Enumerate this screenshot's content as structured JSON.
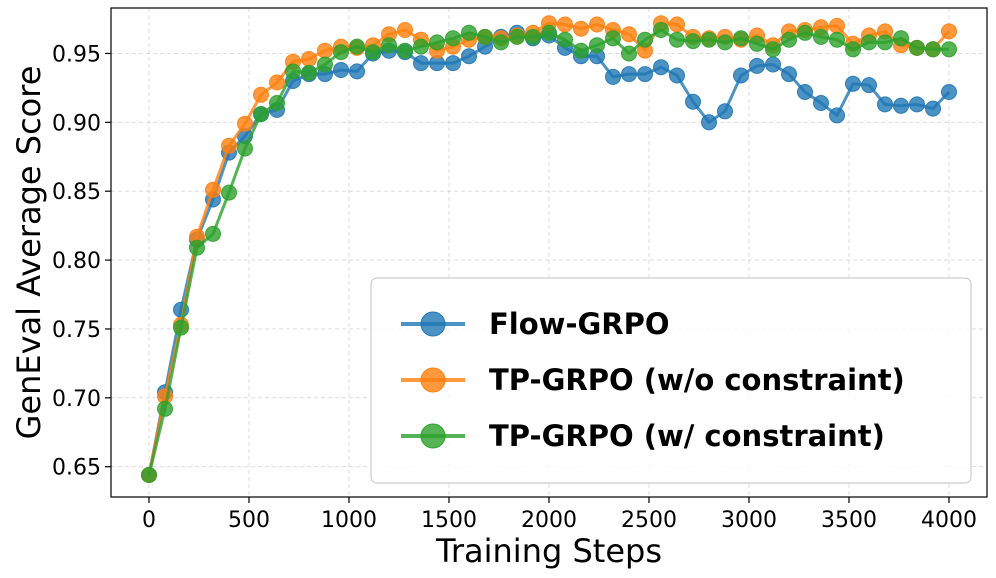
{
  "chart_data": {
    "type": "line",
    "title": "",
    "xlabel": "Training Steps",
    "ylabel": "GenEval Average Score",
    "xlim": [
      -190,
      4190
    ],
    "ylim": [
      0.628,
      0.983
    ],
    "xticks": [
      0,
      500,
      1000,
      1500,
      2000,
      2500,
      3000,
      3500,
      4000
    ],
    "yticks": [
      0.65,
      0.7,
      0.75,
      0.8,
      0.85,
      0.9,
      0.95
    ],
    "xtick_labels": [
      "0",
      "500",
      "1000",
      "1500",
      "2000",
      "2500",
      "3000",
      "3500",
      "4000"
    ],
    "ytick_labels": [
      "0.65",
      "0.70",
      "0.75",
      "0.80",
      "0.85",
      "0.90",
      "0.95"
    ],
    "grid": true,
    "legend_position": "lower-right",
    "x": [
      0,
      80,
      160,
      240,
      320,
      400,
      480,
      560,
      640,
      720,
      800,
      880,
      960,
      1040,
      1120,
      1200,
      1280,
      1360,
      1440,
      1520,
      1600,
      1680,
      1760,
      1840,
      1920,
      2000,
      2080,
      2160,
      2240,
      2320,
      2400,
      2480,
      2560,
      2640,
      2720,
      2800,
      2880,
      2960,
      3040,
      3120,
      3200,
      3280,
      3360,
      3440,
      3520,
      3600,
      3680,
      3760,
      3840,
      3920,
      4000
    ],
    "series": [
      {
        "name": "Flow-GRPO",
        "color": "#1f77b4",
        "values": [
          0.644,
          0.704,
          0.764,
          0.815,
          0.844,
          0.878,
          0.89,
          0.906,
          0.909,
          0.93,
          0.935,
          0.935,
          0.938,
          0.937,
          0.95,
          0.952,
          0.951,
          0.943,
          0.943,
          0.943,
          0.948,
          0.955,
          0.962,
          0.965,
          0.961,
          0.963,
          0.954,
          0.948,
          0.948,
          0.933,
          0.935,
          0.935,
          0.94,
          0.934,
          0.915,
          0.9,
          0.908,
          0.934,
          0.941,
          0.942,
          0.935,
          0.922,
          0.914,
          0.905,
          0.928,
          0.927,
          0.913,
          0.912,
          0.913,
          0.91,
          0.922
        ]
      },
      {
        "name": "TP-GRPO (w/o constraint)",
        "color": "#ff7f0e",
        "values": [
          0.644,
          0.701,
          0.753,
          0.817,
          0.851,
          0.883,
          0.899,
          0.92,
          0.929,
          0.944,
          0.946,
          0.952,
          0.955,
          0.954,
          0.956,
          0.964,
          0.967,
          0.96,
          0.952,
          0.955,
          0.96,
          0.962,
          0.961,
          0.963,
          0.965,
          0.972,
          0.971,
          0.968,
          0.971,
          0.967,
          0.964,
          0.952,
          0.972,
          0.971,
          0.962,
          0.961,
          0.962,
          0.96,
          0.963,
          0.956,
          0.966,
          0.967,
          0.969,
          0.97,
          0.957,
          0.963,
          0.966,
          0.956,
          0.954,
          0.953,
          0.966
        ]
      },
      {
        "name": "TP-GRPO (w/ constraint)",
        "color": "#2ca02c",
        "values": [
          0.644,
          0.692,
          0.751,
          0.809,
          0.819,
          0.849,
          0.881,
          0.906,
          0.914,
          0.937,
          0.936,
          0.942,
          0.951,
          0.955,
          0.951,
          0.956,
          0.952,
          0.955,
          0.958,
          0.961,
          0.965,
          0.962,
          0.958,
          0.962,
          0.962,
          0.965,
          0.96,
          0.952,
          0.956,
          0.961,
          0.95,
          0.96,
          0.967,
          0.96,
          0.959,
          0.96,
          0.958,
          0.961,
          0.957,
          0.953,
          0.96,
          0.965,
          0.962,
          0.96,
          0.953,
          0.958,
          0.958,
          0.961,
          0.954,
          0.953,
          0.953
        ]
      }
    ]
  }
}
